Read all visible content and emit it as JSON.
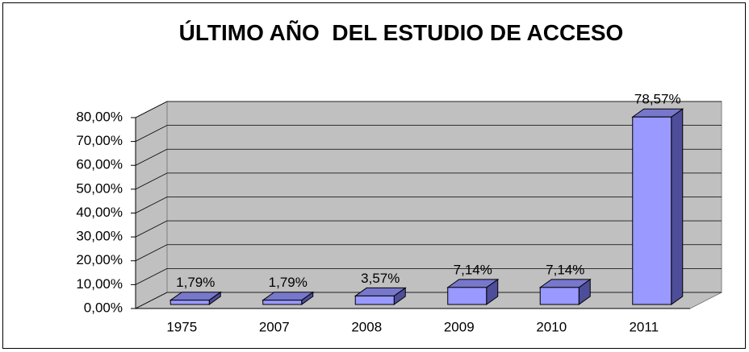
{
  "chart_data": {
    "type": "bar3d",
    "title": "ÚLTIMO AÑO  DEL ESTUDIO DE ACCESO",
    "categories": [
      "1975",
      "2007",
      "2008",
      "2009",
      "2010",
      "2011"
    ],
    "values": [
      1.79,
      1.79,
      3.57,
      7.14,
      7.14,
      78.57
    ],
    "value_labels": [
      "1,79%",
      "1,79%",
      "3,57%",
      "7,14%",
      "7,14%",
      "78,57%"
    ],
    "color": "#9999ff",
    "ylim": [
      0,
      80
    ],
    "yticks": [
      {
        "value": 0,
        "label": "0,00%"
      },
      {
        "value": 10,
        "label": "10,00%"
      },
      {
        "value": 20,
        "label": "20,00%"
      },
      {
        "value": 30,
        "label": "30,00%"
      },
      {
        "value": 40,
        "label": "40,00%"
      },
      {
        "value": 50,
        "label": "50,00%"
      },
      {
        "value": 60,
        "label": "60,00%"
      },
      {
        "value": 70,
        "label": "70,00%"
      },
      {
        "value": 80,
        "label": "80,00%"
      }
    ],
    "grid": true
  }
}
